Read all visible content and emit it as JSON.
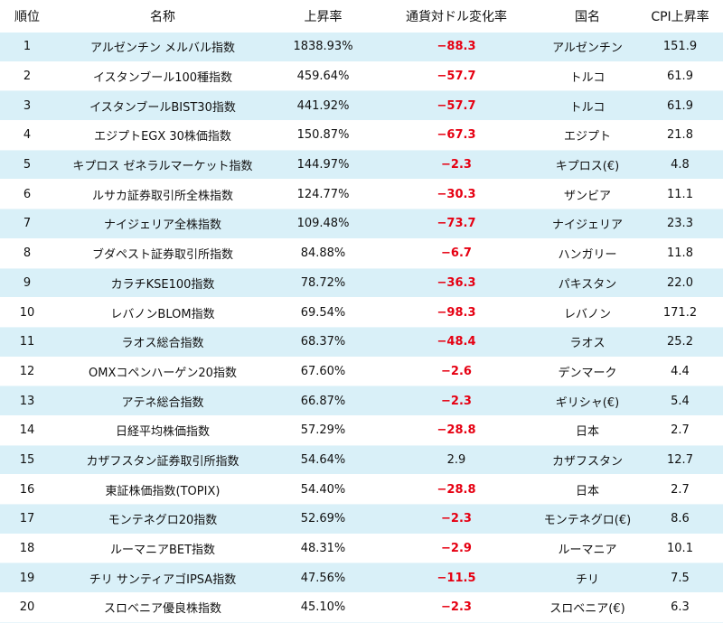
{
  "headers": {
    "rank": "順位",
    "name": "名称",
    "rise": "上昇率",
    "fx": "通貨対ドル変化率",
    "country": "国名",
    "cpi": "CPI上昇率"
  },
  "colors": {
    "stripe": "#d9f0f8",
    "negative": "#e60012"
  },
  "rows": [
    {
      "rank": "1",
      "name": "アルゼンチン メルバル指数",
      "rise": "1838.93%",
      "fx": "−88.3",
      "fx_negative": true,
      "country": "アルゼンチン",
      "cpi": "151.9"
    },
    {
      "rank": "2",
      "name": "イスタンブール100種指数",
      "rise": "459.64%",
      "fx": "−57.7",
      "fx_negative": true,
      "country": "トルコ",
      "cpi": "61.9"
    },
    {
      "rank": "3",
      "name": "イスタンブールBIST30指数",
      "rise": "441.92%",
      "fx": "−57.7",
      "fx_negative": true,
      "country": "トルコ",
      "cpi": "61.9"
    },
    {
      "rank": "4",
      "name": "エジプトEGX 30株価指数",
      "rise": "150.87%",
      "fx": "−67.3",
      "fx_negative": true,
      "country": "エジプト",
      "cpi": "21.8"
    },
    {
      "rank": "5",
      "name": "キプロス ゼネラルマーケット指数",
      "rise": "144.97%",
      "fx": "−2.3",
      "fx_negative": true,
      "country": "キプロス(€)",
      "cpi": "4.8"
    },
    {
      "rank": "6",
      "name": "ルサカ証券取引所全株指数",
      "rise": "124.77%",
      "fx": "−30.3",
      "fx_negative": true,
      "country": "ザンビア",
      "cpi": "11.1"
    },
    {
      "rank": "7",
      "name": "ナイジェリア全株指数",
      "rise": "109.48%",
      "fx": "−73.7",
      "fx_negative": true,
      "country": "ナイジェリア",
      "cpi": "23.3"
    },
    {
      "rank": "8",
      "name": "ブダペスト証券取引所指数",
      "rise": "84.88%",
      "fx": "−6.7",
      "fx_negative": true,
      "country": "ハンガリー",
      "cpi": "11.8"
    },
    {
      "rank": "9",
      "name": "カラチKSE100指数",
      "rise": "78.72%",
      "fx": "−36.3",
      "fx_negative": true,
      "country": "パキスタン",
      "cpi": "22.0"
    },
    {
      "rank": "10",
      "name": "レバノンBLOM指数",
      "rise": "69.54%",
      "fx": "−98.3",
      "fx_negative": true,
      "country": "レバノン",
      "cpi": "171.2"
    },
    {
      "rank": "11",
      "name": "ラオス総合指数",
      "rise": "68.37%",
      "fx": "−48.4",
      "fx_negative": true,
      "country": "ラオス",
      "cpi": "25.2"
    },
    {
      "rank": "12",
      "name": "OMXコペンハーゲン20指数",
      "rise": "67.60%",
      "fx": "−2.6",
      "fx_negative": true,
      "country": "デンマーク",
      "cpi": "4.4"
    },
    {
      "rank": "13",
      "name": "アテネ総合指数",
      "rise": "66.87%",
      "fx": "−2.3",
      "fx_negative": true,
      "country": "ギリシャ(€)",
      "cpi": "5.4"
    },
    {
      "rank": "14",
      "name": "日経平均株価指数",
      "rise": "57.29%",
      "fx": "−28.8",
      "fx_negative": true,
      "country": "日本",
      "cpi": "2.7"
    },
    {
      "rank": "15",
      "name": "カザフスタン証券取引所指数",
      "rise": "54.64%",
      "fx": "2.9",
      "fx_negative": false,
      "country": "カザフスタン",
      "cpi": "12.7"
    },
    {
      "rank": "16",
      "name": "東証株価指数(TOPIX)",
      "rise": "54.40%",
      "fx": "−28.8",
      "fx_negative": true,
      "country": "日本",
      "cpi": "2.7"
    },
    {
      "rank": "17",
      "name": "モンテネグロ20指数",
      "rise": "52.69%",
      "fx": "−2.3",
      "fx_negative": true,
      "country": "モンテネグロ(€)",
      "cpi": "8.6"
    },
    {
      "rank": "18",
      "name": "ルーマニアBET指数",
      "rise": "48.31%",
      "fx": "−2.9",
      "fx_negative": true,
      "country": "ルーマニア",
      "cpi": "10.1"
    },
    {
      "rank": "19",
      "name": "チリ サンティアゴIPSA指数",
      "rise": "47.56%",
      "fx": "−11.5",
      "fx_negative": true,
      "country": "チリ",
      "cpi": "7.5"
    },
    {
      "rank": "20",
      "name": "スロベニア優良株指数",
      "rise": "45.10%",
      "fx": "−2.3",
      "fx_negative": true,
      "country": "スロベニア(€)",
      "cpi": "6.3"
    }
  ]
}
